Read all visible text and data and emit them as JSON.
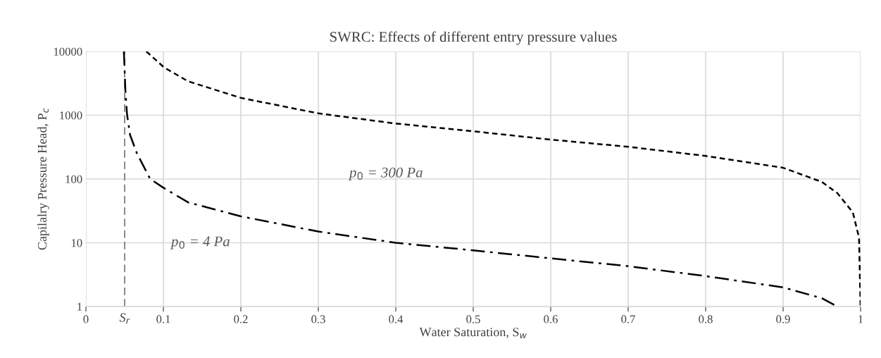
{
  "chart_data": {
    "type": "line",
    "title": "SWRC: Effects of different entry pressure values",
    "xlabel": "Water Saturation, S$_{w}$",
    "ylabel": "Capilalry Pressure Head, P$_{c}$",
    "series": [
      {
        "name": "p$_{0}$ = 300 Pa",
        "color": "#000000",
        "line_style": "dashed",
        "x": [
          0.078,
          0.101,
          0.132,
          0.2,
          0.3,
          0.4,
          0.5,
          0.6,
          0.7,
          0.8,
          0.9,
          0.95,
          0.97,
          0.99,
          0.998,
          1.0
        ],
        "values": [
          10000,
          5600,
          3400,
          1870,
          1070,
          740,
          560,
          415,
          320,
          230,
          150,
          90,
          60,
          30,
          12,
          1
        ]
      },
      {
        "name": "p$_{0}$ = 4 Pa",
        "color": "#000000",
        "line_style": "dashdot",
        "x": [
          0.049,
          0.051,
          0.053,
          0.057,
          0.066,
          0.083,
          0.1,
          0.132,
          0.2,
          0.3,
          0.4,
          0.5,
          0.6,
          0.7,
          0.8,
          0.9,
          0.95,
          0.97
        ],
        "values": [
          10000,
          2400,
          1050,
          490,
          250,
          100,
          73,
          43,
          26,
          15,
          10,
          7.6,
          5.7,
          4.3,
          3.0,
          2.0,
          1.35,
          1.0
        ]
      }
    ],
    "log": "y",
    "xlim": [
      0,
      1
    ],
    "ylim": [
      1,
      10000
    ],
    "xticks": [
      0,
      0.1,
      0.2,
      0.3,
      0.4,
      0.5,
      0.6,
      0.7,
      0.8,
      0.9,
      1
    ],
    "yticks": [
      1,
      10,
      100,
      1000,
      10000
    ],
    "grid": true,
    "marker": "none",
    "ref_lines": [
      {
        "axis": "x",
        "value": 0.05,
        "label": "S$_{r}$",
        "color": "#7f7f7f",
        "line_style": "dashed"
      }
    ]
  }
}
